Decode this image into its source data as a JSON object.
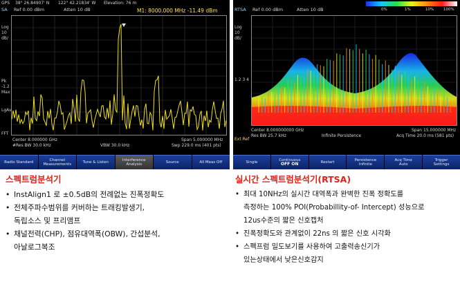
{
  "left_screen": {
    "status": {
      "gps": "GPS",
      "lat": "38° 26.84907' N",
      "lon": "122° 42.21834' W",
      "elev": "Elevation: 76 m"
    },
    "mode": "SA",
    "ref": "Ref 0.00 dBm",
    "atten": "Atten 10 dB",
    "marker": "M1:  8000.000 MHz  -11.49 dBm",
    "side_labels": [
      "Log",
      "10",
      "dB/",
      "Pk",
      "-1.2 4",
      "Max",
      "LgAv",
      "FFT"
    ],
    "footer": {
      "center": "Center  8.000000 GHz",
      "span": "Span  5.000000 MHz",
      "rbw": "#Res BW  30.0 kHz",
      "vbw": "VBW  30.0 kHz",
      "swp": "Swp  229.0 ms  (401 pts)"
    },
    "softkeys": [
      {
        "label": "Radio Standard",
        "active": false
      },
      {
        "label": "Channel Measurements",
        "active": false
      },
      {
        "label": "Tune & Listen",
        "active": false
      },
      {
        "label": "Interference Analysis",
        "active": true
      },
      {
        "label": "Source",
        "active": false
      },
      {
        "label": "All Meas Off",
        "active": false
      }
    ]
  },
  "right_screen": {
    "mode": "RTSA",
    "ref": "Ref 0.00 dBm",
    "atten": "Atten 10 dB",
    "legend": [
      "0%",
      "1%",
      "10%",
      "100%"
    ],
    "side_labels": [
      "Log",
      "10",
      "dB/",
      "1.2 3 4"
    ],
    "ext_ref": "Ext Ref",
    "footer": {
      "center": "Center  8.000000000 GHz",
      "span": "Span  15.000000 MHz",
      "rbw": "Res BW  25.7 kHz",
      "persist": "Infinite Persistence",
      "acq": "Acq Time  20.0 ms  (581 pts)"
    },
    "softkeys": [
      {
        "label": "Single",
        "value": "",
        "active": false
      },
      {
        "label": "Continuous",
        "value": "OFF  ON",
        "active": false
      },
      {
        "label": "Restart",
        "value": "",
        "active": false
      },
      {
        "label": "Persistence",
        "value": "Infinite",
        "active": false
      },
      {
        "label": "Acq Time",
        "value": "Auto",
        "active": false
      },
      {
        "label": "Trigger",
        "value": "Settings",
        "active": false
      }
    ]
  },
  "left_caption": {
    "title": "스펙트럼분석기",
    "bullets": [
      {
        "line1": "InstAlign1 로 ±0.5dB의 전례없는 진폭정확도",
        "line2": ""
      },
      {
        "line1": "전체주파수범위를 커버하는 트래킹발생기,",
        "line2": "독립소스 및 프리앰프"
      },
      {
        "line1": "채널전력(CHP), 점유대역폭(OBW), 간섭분석,",
        "line2": "아날로그복조"
      }
    ]
  },
  "right_caption": {
    "title": "실시간 스펙트럼분석기(RTSA)",
    "bullets": [
      {
        "line1": "최대 10NHz의 실시간 대역폭과 완벽한 진폭 정확도를",
        "line2": "측정하는 100% POI(Probabillity-of- Intercept) 성능으로",
        "line3": "12us수준의 짧은 신호캡처"
      },
      {
        "line1": "진폭정확도와 관계없이 22ns 의 짧은 신호 시각화",
        "line2": "",
        "line3": ""
      },
      {
        "line1": "스펙프럼 밀도보기를 사용하여 고출력송신기가",
        "line2": "있는상태에서 낮은신호감지",
        "line3": ""
      }
    ]
  },
  "colors": {
    "trace": "#f0e020",
    "caption_red": "#e0201a",
    "softkey_blue": "#1b3f9d"
  }
}
